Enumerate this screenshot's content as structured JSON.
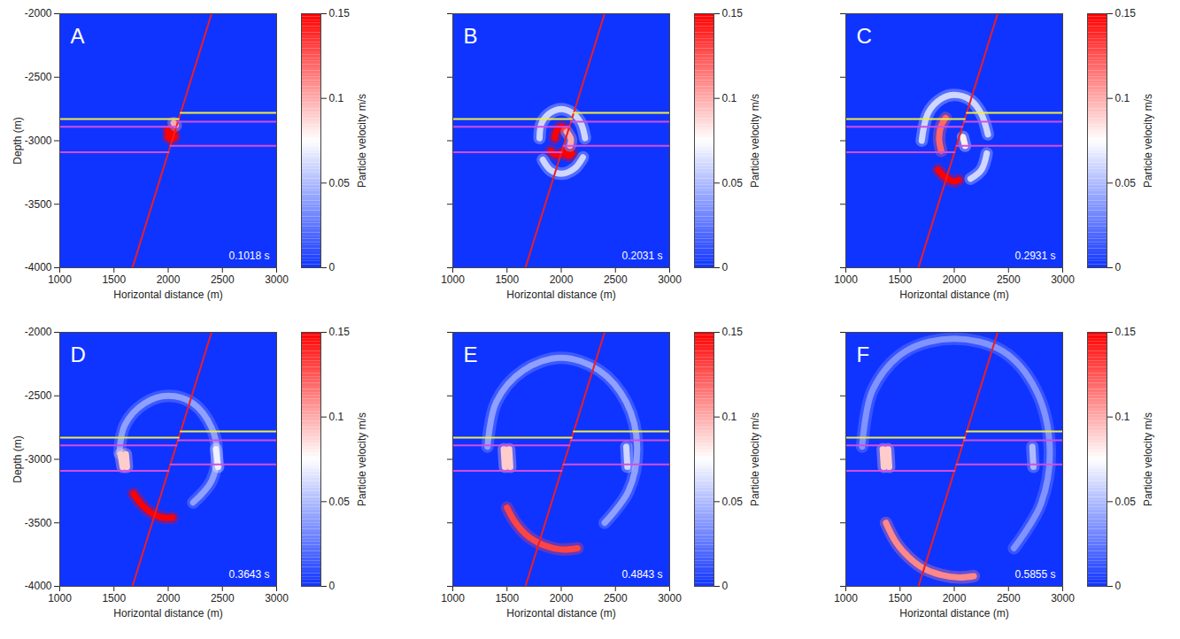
{
  "chart_data": [
    {
      "type": "heatmap",
      "title": "A",
      "annotation": "0.1018 s",
      "x_label": "Horizontal distance (m)",
      "y_label": "Depth (m)",
      "xlim": [
        1000,
        3000
      ],
      "ylim": [
        -4000,
        -2000
      ],
      "xticks": [
        1000,
        1500,
        2000,
        2500,
        3000
      ],
      "yticks": [
        -4000,
        -3500,
        -3000,
        -2500,
        -2000
      ],
      "tick_labels": true,
      "colorbar": {
        "label": "Particle velocity m/s",
        "lim": [
          0,
          0.15
        ],
        "ticks": [
          0,
          0.05,
          0.1,
          0.15
        ]
      },
      "lines": [
        {
          "color": "#ee1c24",
          "x": [
            1670,
            2400
          ],
          "y": [
            -4000,
            -2000
          ]
        },
        {
          "color": "#eeee44",
          "x": [
            1000,
            2097
          ],
          "y": [
            -2830,
            -2830
          ]
        },
        {
          "color": "#eeee44",
          "x": [
            2115,
            3000
          ],
          "y": [
            -2780,
            -2780
          ]
        },
        {
          "color": "#d24ee0",
          "x": [
            1000,
            2075
          ],
          "y": [
            -2890,
            -2890
          ]
        },
        {
          "color": "#d24ee0",
          "x": [
            2090,
            3000
          ],
          "y": [
            -2850,
            -2850
          ]
        },
        {
          "color": "#d24ee0",
          "x": [
            1000,
            2003
          ],
          "y": [
            -3090,
            -3090
          ]
        },
        {
          "color": "#d24ee0",
          "x": [
            2021,
            3000
          ],
          "y": [
            -3040,
            -3040
          ]
        }
      ],
      "wavefronts": [
        {
          "value": 0.15,
          "x": [
            1995,
            2020,
            2045
          ],
          "y": [
            -2920,
            -2950,
            -2935
          ]
        },
        {
          "value": 0.15,
          "x": [
            2000,
            2030,
            2060
          ],
          "y": [
            -2975,
            -2990,
            -2970
          ]
        },
        {
          "value": 0.1,
          "x": [
            2050,
            2070
          ],
          "y": [
            -2860,
            -2880
          ]
        }
      ]
    },
    {
      "type": "heatmap",
      "title": "B",
      "annotation": "0.2031 s",
      "x_label": "Horizontal distance (m)",
      "xlim": [
        1000,
        3000
      ],
      "ylim": [
        -4000,
        -2000
      ],
      "xticks": [
        1000,
        1500,
        2000,
        2500,
        3000
      ],
      "yticks": [
        -4000,
        -3500,
        -3000,
        -2500,
        -2000
      ],
      "tick_labels": "x",
      "colorbar": {
        "label": "Particle velocity m/s",
        "lim": [
          0,
          0.15
        ],
        "ticks": [
          0,
          0.05,
          0.1,
          0.15
        ]
      },
      "lines": [
        {
          "color": "#ee1c24",
          "x": [
            1670,
            2400
          ],
          "y": [
            -4000,
            -2000
          ]
        },
        {
          "color": "#eeee44",
          "x": [
            1000,
            2097
          ],
          "y": [
            -2830,
            -2830
          ]
        },
        {
          "color": "#eeee44",
          "x": [
            2115,
            3000
          ],
          "y": [
            -2780,
            -2780
          ]
        },
        {
          "color": "#d24ee0",
          "x": [
            1000,
            2075
          ],
          "y": [
            -2890,
            -2890
          ]
        },
        {
          "color": "#d24ee0",
          "x": [
            2090,
            3000
          ],
          "y": [
            -2850,
            -2850
          ]
        },
        {
          "color": "#d24ee0",
          "x": [
            1000,
            2003
          ],
          "y": [
            -3090,
            -3090
          ]
        },
        {
          "color": "#d24ee0",
          "x": [
            2021,
            3000
          ],
          "y": [
            -3040,
            -3040
          ]
        }
      ],
      "wavefronts": [
        {
          "value": 0.06,
          "x": [
            1800,
            1820,
            1900,
            2000,
            2100,
            2180,
            2220
          ],
          "y": [
            -2980,
            -2860,
            -2780,
            -2750,
            -2780,
            -2860,
            -2980
          ]
        },
        {
          "value": 0.06,
          "x": [
            1830,
            1900,
            2000,
            2120,
            2200
          ],
          "y": [
            -3150,
            -3230,
            -3260,
            -3220,
            -3130
          ]
        },
        {
          "value": 0.15,
          "x": [
            1905,
            1950,
            2000
          ],
          "y": [
            -3080,
            -3110,
            -3100
          ]
        },
        {
          "value": 0.15,
          "x": [
            2030,
            2070,
            2100
          ],
          "y": [
            -3090,
            -3120,
            -3100
          ]
        },
        {
          "value": 0.15,
          "x": [
            1940,
            1960,
            2000,
            2040
          ],
          "y": [
            -2980,
            -2920,
            -2890,
            -2910
          ]
        },
        {
          "value": 0.1,
          "x": [
            2050,
            2090,
            2080
          ],
          "y": [
            -2930,
            -2990,
            -3040
          ]
        }
      ]
    },
    {
      "type": "heatmap",
      "title": "C",
      "annotation": "0.2931 s",
      "x_label": "Horizontal distance (m)",
      "xlim": [
        1000,
        3000
      ],
      "ylim": [
        -4000,
        -2000
      ],
      "xticks": [
        1000,
        1500,
        2000,
        2500,
        3000
      ],
      "yticks": [
        -4000,
        -3500,
        -3000,
        -2500,
        -2000
      ],
      "tick_labels": "x",
      "colorbar": {
        "label": "Particle velocity m/s",
        "lim": [
          0,
          0.15
        ],
        "ticks": [
          0,
          0.05,
          0.1,
          0.15
        ]
      },
      "lines": [
        {
          "color": "#ee1c24",
          "x": [
            1670,
            2400
          ],
          "y": [
            -4000,
            -2000
          ]
        },
        {
          "color": "#eeee44",
          "x": [
            1000,
            2097
          ],
          "y": [
            -2830,
            -2830
          ]
        },
        {
          "color": "#eeee44",
          "x": [
            2115,
            3000
          ],
          "y": [
            -2780,
            -2780
          ]
        },
        {
          "color": "#d24ee0",
          "x": [
            1000,
            2075
          ],
          "y": [
            -2890,
            -2890
          ]
        },
        {
          "color": "#d24ee0",
          "x": [
            2090,
            3000
          ],
          "y": [
            -2850,
            -2850
          ]
        },
        {
          "color": "#d24ee0",
          "x": [
            1000,
            2003
          ],
          "y": [
            -3090,
            -3090
          ]
        },
        {
          "color": "#d24ee0",
          "x": [
            2021,
            3000
          ],
          "y": [
            -3040,
            -3040
          ]
        }
      ],
      "wavefronts": [
        {
          "value": 0.06,
          "x": [
            1700,
            1760,
            1880,
            2000,
            2150,
            2250,
            2310
          ],
          "y": [
            -3000,
            -2780,
            -2670,
            -2640,
            -2680,
            -2790,
            -2950
          ]
        },
        {
          "value": 0.06,
          "x": [
            2300,
            2250,
            2150
          ],
          "y": [
            -3100,
            -3230,
            -3300
          ]
        },
        {
          "value": 0.08,
          "x": [
            2080,
            2100
          ],
          "y": [
            -2970,
            -3040
          ]
        },
        {
          "value": 0.12,
          "x": [
            1880,
            1860,
            1880,
            1920
          ],
          "y": [
            -3080,
            -2980,
            -2880,
            -2820
          ]
        },
        {
          "value": 0.15,
          "x": [
            1850,
            1920,
            2000,
            2040
          ],
          "y": [
            -3230,
            -3290,
            -3320,
            -3310
          ]
        }
      ]
    },
    {
      "type": "heatmap",
      "title": "D",
      "annotation": "0.3643 s",
      "x_label": "Horizontal distance (m)",
      "y_label": "Depth (m)",
      "xlim": [
        1000,
        3000
      ],
      "ylim": [
        -4000,
        -2000
      ],
      "xticks": [
        1000,
        1500,
        2000,
        2500,
        3000
      ],
      "yticks": [
        -4000,
        -3500,
        -3000,
        -2500,
        -2000
      ],
      "tick_labels": true,
      "colorbar": {
        "label": "Particle velocity m/s",
        "lim": [
          0,
          0.15
        ],
        "ticks": [
          0,
          0.05,
          0.1,
          0.15
        ]
      },
      "lines": [
        {
          "color": "#ee1c24",
          "x": [
            1670,
            2400
          ],
          "y": [
            -4000,
            -2000
          ]
        },
        {
          "color": "#eeee44",
          "x": [
            1000,
            2097
          ],
          "y": [
            -2830,
            -2830
          ]
        },
        {
          "color": "#eeee44",
          "x": [
            2115,
            3000
          ],
          "y": [
            -2780,
            -2780
          ]
        },
        {
          "color": "#d24ee0",
          "x": [
            1000,
            2075
          ],
          "y": [
            -2890,
            -2890
          ]
        },
        {
          "color": "#d24ee0",
          "x": [
            2090,
            3000
          ],
          "y": [
            -2850,
            -2850
          ]
        },
        {
          "color": "#d24ee0",
          "x": [
            1000,
            2003
          ],
          "y": [
            -3090,
            -3090
          ]
        },
        {
          "color": "#d24ee0",
          "x": [
            2021,
            3000
          ],
          "y": [
            -3040,
            -3040
          ]
        }
      ],
      "wavefronts": [
        {
          "value": 0.04,
          "x": [
            1550,
            1600,
            1780,
            2000,
            2230,
            2400,
            2450,
            2400,
            2230
          ],
          "y": [
            -2950,
            -2730,
            -2560,
            -2500,
            -2560,
            -2750,
            -2950,
            -3170,
            -3340
          ]
        },
        {
          "value": 0.09,
          "x": [
            1560,
            1580
          ],
          "y": [
            -2960,
            -3060
          ]
        },
        {
          "value": 0.09,
          "x": [
            1610,
            1620
          ],
          "y": [
            -2960,
            -3060
          ]
        },
        {
          "value": 0.07,
          "x": [
            2440,
            2460
          ],
          "y": [
            -2920,
            -3060
          ]
        },
        {
          "value": 0.15,
          "x": [
            1680,
            1760,
            1860,
            1960,
            2040
          ],
          "y": [
            -3270,
            -3360,
            -3430,
            -3460,
            -3460
          ]
        }
      ]
    },
    {
      "type": "heatmap",
      "title": "E",
      "annotation": "0.4843 s",
      "x_label": "Horizontal distance (m)",
      "xlim": [
        1000,
        3000
      ],
      "ylim": [
        -4000,
        -2000
      ],
      "xticks": [
        1000,
        1500,
        2000,
        2500,
        3000
      ],
      "yticks": [
        -4000,
        -3500,
        -3000,
        -2500,
        -2000
      ],
      "tick_labels": "x",
      "colorbar": {
        "label": "Particle velocity m/s",
        "lim": [
          0,
          0.15
        ],
        "ticks": [
          0,
          0.05,
          0.1,
          0.15
        ]
      },
      "lines": [
        {
          "color": "#ee1c24",
          "x": [
            1670,
            2400
          ],
          "y": [
            -4000,
            -2000
          ]
        },
        {
          "color": "#eeee44",
          "x": [
            1000,
            2097
          ],
          "y": [
            -2830,
            -2830
          ]
        },
        {
          "color": "#eeee44",
          "x": [
            2115,
            3000
          ],
          "y": [
            -2780,
            -2780
          ]
        },
        {
          "color": "#d24ee0",
          "x": [
            1000,
            2075
          ],
          "y": [
            -2890,
            -2890
          ]
        },
        {
          "color": "#d24ee0",
          "x": [
            2090,
            3000
          ],
          "y": [
            -2850,
            -2850
          ]
        },
        {
          "color": "#d24ee0",
          "x": [
            1000,
            2003
          ],
          "y": [
            -3090,
            -3090
          ]
        },
        {
          "color": "#d24ee0",
          "x": [
            2021,
            3000
          ],
          "y": [
            -3040,
            -3040
          ]
        }
      ],
      "wavefronts": [
        {
          "value": 0.04,
          "x": [
            1320,
            1400,
            1650,
            2000,
            2350,
            2600,
            2700,
            2620,
            2400
          ],
          "y": [
            -2900,
            -2550,
            -2300,
            -2200,
            -2300,
            -2550,
            -2900,
            -3250,
            -3500
          ]
        },
        {
          "value": 0.09,
          "x": [
            1470,
            1480
          ],
          "y": [
            -2920,
            -3060
          ]
        },
        {
          "value": 0.09,
          "x": [
            1520,
            1530
          ],
          "y": [
            -2920,
            -3060
          ]
        },
        {
          "value": 0.06,
          "x": [
            2600,
            2610
          ],
          "y": [
            -2900,
            -3060
          ]
        },
        {
          "value": 0.13,
          "x": [
            1500,
            1580,
            1700,
            1850,
            2000,
            2150
          ],
          "y": [
            -3380,
            -3500,
            -3610,
            -3680,
            -3710,
            -3700
          ]
        }
      ]
    },
    {
      "type": "heatmap",
      "title": "F",
      "annotation": "0.5855 s",
      "x_label": "Horizontal distance (m)",
      "xlim": [
        1000,
        3000
      ],
      "ylim": [
        -4000,
        -2000
      ],
      "xticks": [
        1000,
        1500,
        2000,
        2500,
        3000
      ],
      "yticks": [
        -4000,
        -3500,
        -3000,
        -2500,
        -2000
      ],
      "tick_labels": "x",
      "colorbar": {
        "label": "Particle velocity m/s",
        "lim": [
          0,
          0.15
        ],
        "ticks": [
          0,
          0.05,
          0.1,
          0.15
        ]
      },
      "lines": [
        {
          "color": "#ee1c24",
          "x": [
            1670,
            2400
          ],
          "y": [
            -4000,
            -2000
          ]
        },
        {
          "color": "#eeee44",
          "x": [
            1000,
            2097
          ],
          "y": [
            -2830,
            -2830
          ]
        },
        {
          "color": "#eeee44",
          "x": [
            2115,
            3000
          ],
          "y": [
            -2780,
            -2780
          ]
        },
        {
          "color": "#d24ee0",
          "x": [
            1000,
            2075
          ],
          "y": [
            -2890,
            -2890
          ]
        },
        {
          "color": "#d24ee0",
          "x": [
            2090,
            3000
          ],
          "y": [
            -2850,
            -2850
          ]
        },
        {
          "color": "#d24ee0",
          "x": [
            1000,
            2003
          ],
          "y": [
            -3090,
            -3090
          ]
        },
        {
          "color": "#d24ee0",
          "x": [
            2021,
            3000
          ],
          "y": [
            -3040,
            -3040
          ]
        }
      ],
      "wavefronts": [
        {
          "value": 0.035,
          "x": [
            1150,
            1250,
            1550,
            2000,
            2450,
            2750,
            2880,
            2800,
            2550
          ],
          "y": [
            -2900,
            -2450,
            -2150,
            -2050,
            -2150,
            -2450,
            -2900,
            -3350,
            -3700
          ]
        },
        {
          "value": 0.09,
          "x": [
            1340,
            1350
          ],
          "y": [
            -2920,
            -3060
          ]
        },
        {
          "value": 0.09,
          "x": [
            1390,
            1400
          ],
          "y": [
            -2920,
            -3060
          ]
        },
        {
          "value": 0.05,
          "x": [
            2720,
            2730
          ],
          "y": [
            -2900,
            -3060
          ]
        },
        {
          "value": 0.11,
          "x": [
            1370,
            1460,
            1580,
            1720,
            1880,
            2050,
            2180
          ],
          "y": [
            -3500,
            -3650,
            -3770,
            -3860,
            -3910,
            -3930,
            -3920
          ]
        }
      ]
    }
  ]
}
